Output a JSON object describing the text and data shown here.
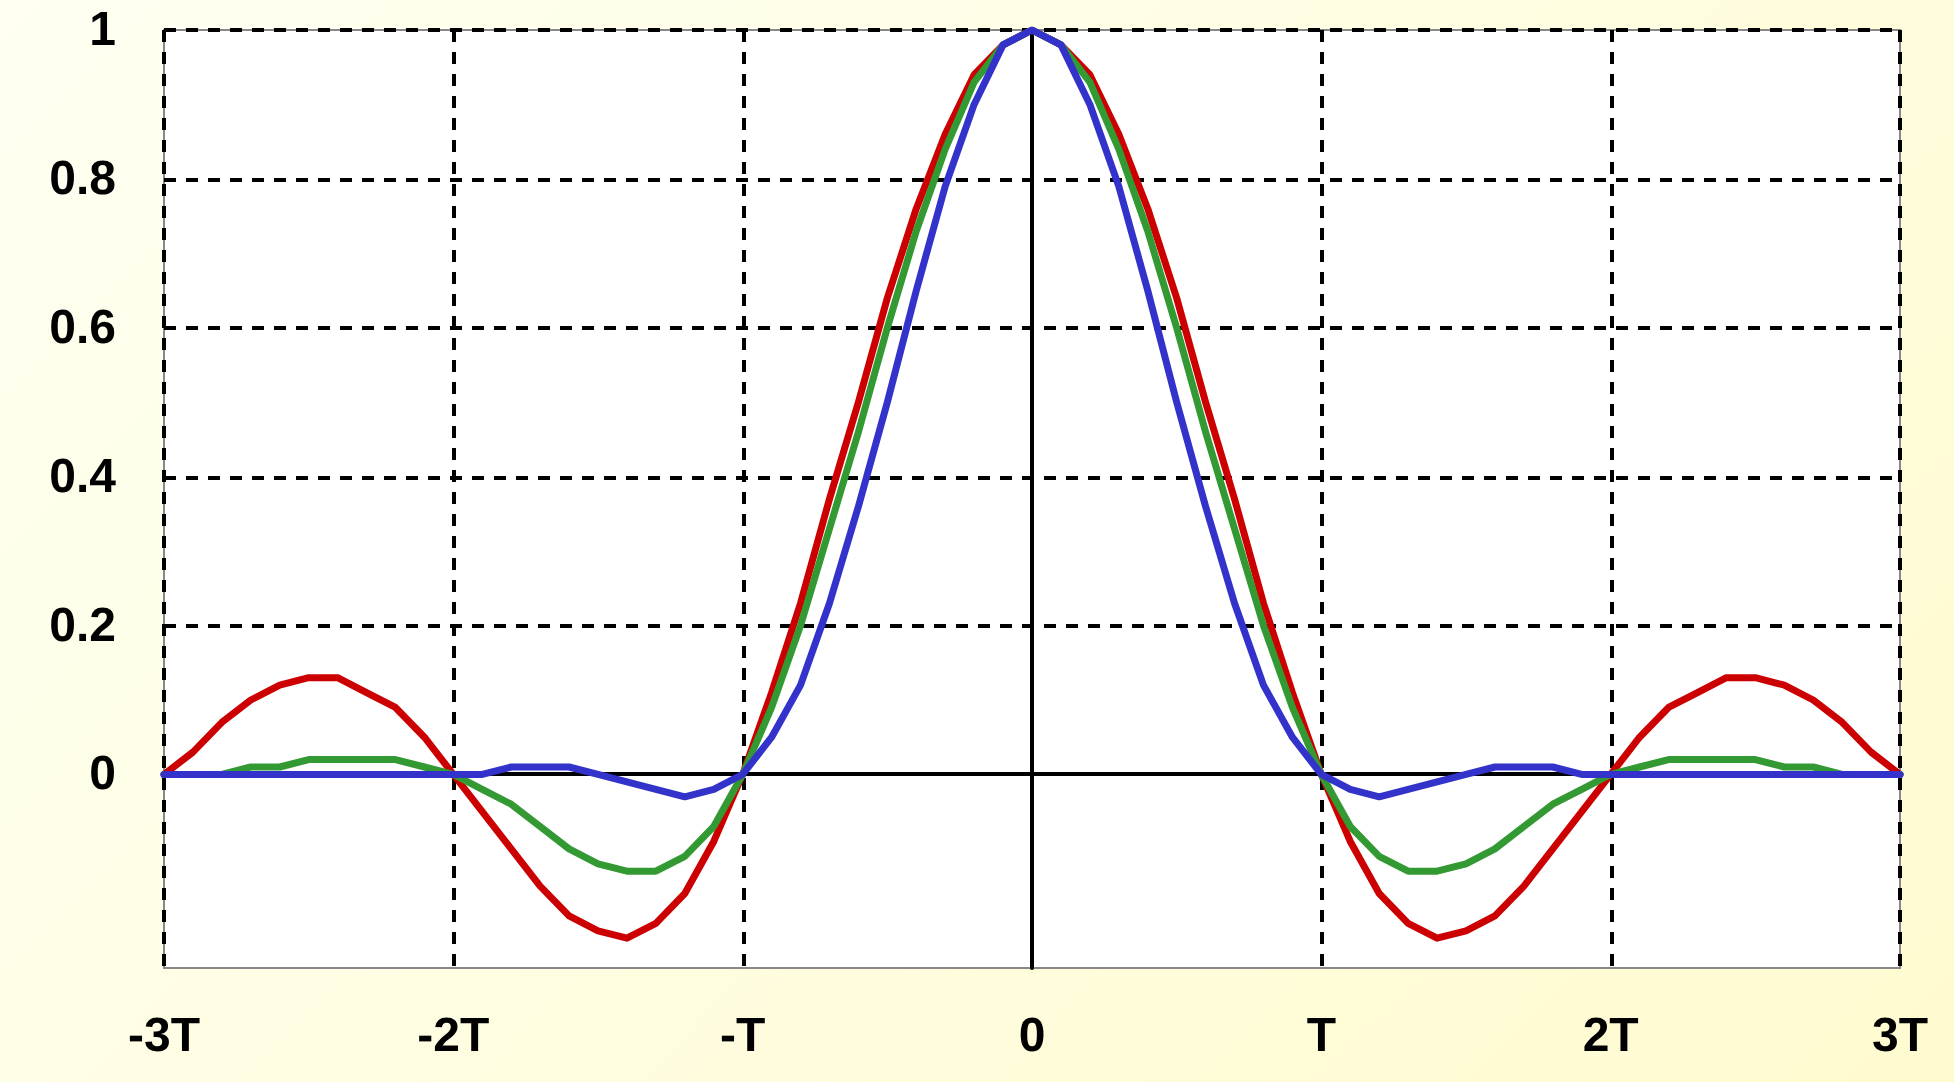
{
  "chart_data": {
    "type": "line",
    "x": [
      -3,
      -2.9,
      -2.8,
      -2.7,
      -2.6,
      -2.5,
      -2.4,
      -2.3,
      -2.2,
      -2.1,
      -2,
      -1.9,
      -1.8,
      -1.7,
      -1.6,
      -1.5,
      -1.4,
      -1.3,
      -1.2,
      -1.1,
      -1,
      -0.9,
      -0.8,
      -0.7,
      -0.6,
      -0.5,
      -0.4,
      -0.3,
      -0.2,
      -0.1,
      0,
      0.1,
      0.2,
      0.3,
      0.4,
      0.5,
      0.6,
      0.7,
      0.8,
      0.9,
      1,
      1.1,
      1.2,
      1.3,
      1.4,
      1.5,
      1.6,
      1.7,
      1.8,
      1.9,
      2,
      2.1,
      2.2,
      2.3,
      2.4,
      2.5,
      2.6,
      2.7,
      2.8,
      2.9,
      3
    ],
    "series": [
      {
        "color": "#cc0000",
        "values": [
          0,
          0.03,
          0.07,
          0.1,
          0.12,
          0.13,
          0.13,
          0.11,
          0.09,
          0.05,
          0,
          -0.05,
          -0.1,
          -0.15,
          -0.19,
          -0.21,
          -0.22,
          -0.2,
          -0.16,
          -0.09,
          0,
          0.11,
          0.23,
          0.37,
          0.5,
          0.64,
          0.76,
          0.86,
          0.94,
          0.98,
          1,
          0.98,
          0.94,
          0.86,
          0.76,
          0.64,
          0.5,
          0.37,
          0.23,
          0.11,
          0,
          -0.09,
          -0.16,
          -0.2,
          -0.22,
          -0.21,
          -0.19,
          -0.15,
          -0.1,
          -0.05,
          0,
          0.05,
          0.09,
          0.11,
          0.13,
          0.13,
          0.12,
          0.1,
          0.07,
          0.03,
          0
        ]
      },
      {
        "color": "#339933",
        "values": [
          0,
          0,
          0,
          0.01,
          0.01,
          0.02,
          0.02,
          0.02,
          0.02,
          0.01,
          0,
          -0.02,
          -0.04,
          -0.07,
          -0.1,
          -0.12,
          -0.13,
          -0.13,
          -0.11,
          -0.07,
          0,
          0.09,
          0.2,
          0.33,
          0.46,
          0.6,
          0.73,
          0.84,
          0.93,
          0.98,
          1,
          0.98,
          0.93,
          0.84,
          0.73,
          0.6,
          0.46,
          0.33,
          0.2,
          0.09,
          0,
          -0.07,
          -0.11,
          -0.13,
          -0.13,
          -0.12,
          -0.1,
          -0.07,
          -0.04,
          -0.02,
          0,
          0.01,
          0.02,
          0.02,
          0.02,
          0.02,
          0.01,
          0.01,
          0,
          0,
          0
        ]
      },
      {
        "color": "#3333cc",
        "values": [
          0,
          0,
          0,
          0,
          0,
          0,
          0,
          0,
          0,
          0,
          0,
          0,
          0.01,
          0.01,
          0.01,
          0,
          -0.01,
          -0.02,
          -0.03,
          -0.02,
          0,
          0.05,
          0.12,
          0.23,
          0.36,
          0.5,
          0.65,
          0.79,
          0.9,
          0.98,
          1,
          0.98,
          0.9,
          0.79,
          0.65,
          0.5,
          0.36,
          0.23,
          0.12,
          0.05,
          0,
          -0.02,
          -0.03,
          -0.02,
          -0.01,
          0,
          0.01,
          0.01,
          0.01,
          0,
          0,
          0,
          0,
          0,
          0,
          0,
          0,
          0,
          0,
          0,
          0
        ]
      }
    ],
    "xlim": [
      -3,
      3
    ],
    "xticks": [
      {
        "value": -3,
        "label": "-3T"
      },
      {
        "value": -2,
        "label": "-2T"
      },
      {
        "value": -1,
        "label": "-T"
      },
      0,
      {
        "value": 1,
        "label": "T"
      },
      {
        "value": 2,
        "label": "2T"
      },
      {
        "value": 3,
        "label": "3T"
      }
    ],
    "ylim": [
      -0.26,
      1
    ],
    "yticks": [
      0,
      0.2,
      0.4,
      0.6,
      0.8,
      1
    ],
    "grid": true,
    "marker": "none",
    "line_style": "solid"
  }
}
